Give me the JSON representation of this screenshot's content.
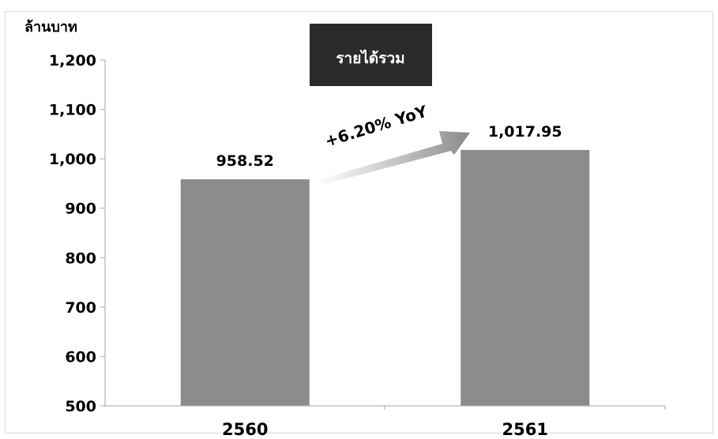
{
  "chart_data": {
    "type": "bar",
    "title": "รายได้รวม",
    "ylabel": "ล้านบาท",
    "categories": [
      "2560",
      "2561"
    ],
    "values": [
      958.52,
      1017.95
    ],
    "value_labels": [
      "958.52",
      "1,017.95"
    ],
    "ylim": [
      500,
      1200
    ],
    "yticks": [
      500,
      600,
      700,
      800,
      900,
      1000,
      1100,
      1200
    ],
    "ytick_labels": [
      "500",
      "600",
      "700",
      "800",
      "900",
      "1,000",
      "1,100",
      "1,200"
    ],
    "annotation": "+6.20% YoY",
    "bar_color": "#8c8c8c",
    "title_bg_color": "#2b2b2b",
    "grid": false,
    "legend": "none"
  }
}
